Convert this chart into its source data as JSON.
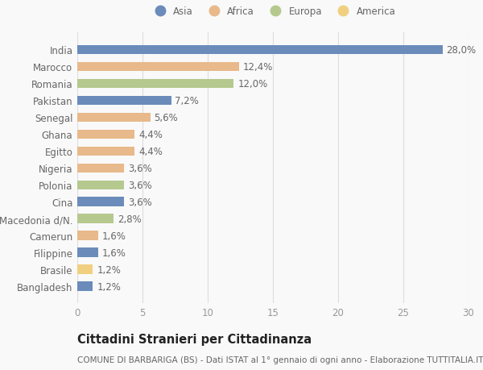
{
  "countries": [
    "India",
    "Marocco",
    "Romania",
    "Pakistan",
    "Senegal",
    "Ghana",
    "Egitto",
    "Nigeria",
    "Polonia",
    "Cina",
    "Macedonia d/N.",
    "Camerun",
    "Filippine",
    "Brasile",
    "Bangladesh"
  ],
  "values": [
    28.0,
    12.4,
    12.0,
    7.2,
    5.6,
    4.4,
    4.4,
    3.6,
    3.6,
    3.6,
    2.8,
    1.6,
    1.6,
    1.2,
    1.2
  ],
  "continents": [
    "Asia",
    "Africa",
    "Europa",
    "Asia",
    "Africa",
    "Africa",
    "Africa",
    "Africa",
    "Europa",
    "Asia",
    "Europa",
    "Africa",
    "Asia",
    "America",
    "Asia"
  ],
  "colors": {
    "Asia": "#6b8cba",
    "Africa": "#e8b98a",
    "Europa": "#b5c98e",
    "America": "#f0d080"
  },
  "legend_order": [
    "Asia",
    "Africa",
    "Europa",
    "America"
  ],
  "xlim": [
    0,
    30
  ],
  "xticks": [
    0,
    5,
    10,
    15,
    20,
    25,
    30
  ],
  "title": "Cittadini Stranieri per Cittadinanza",
  "subtitle": "COMUNE DI BARBARIGA (BS) - Dati ISTAT al 1° gennaio di ogni anno - Elaborazione TUTTITALIA.IT",
  "background_color": "#f9f9f9",
  "bar_height": 0.55,
  "label_fontsize": 8.5,
  "tick_fontsize": 8.5,
  "title_fontsize": 10.5,
  "subtitle_fontsize": 7.5
}
